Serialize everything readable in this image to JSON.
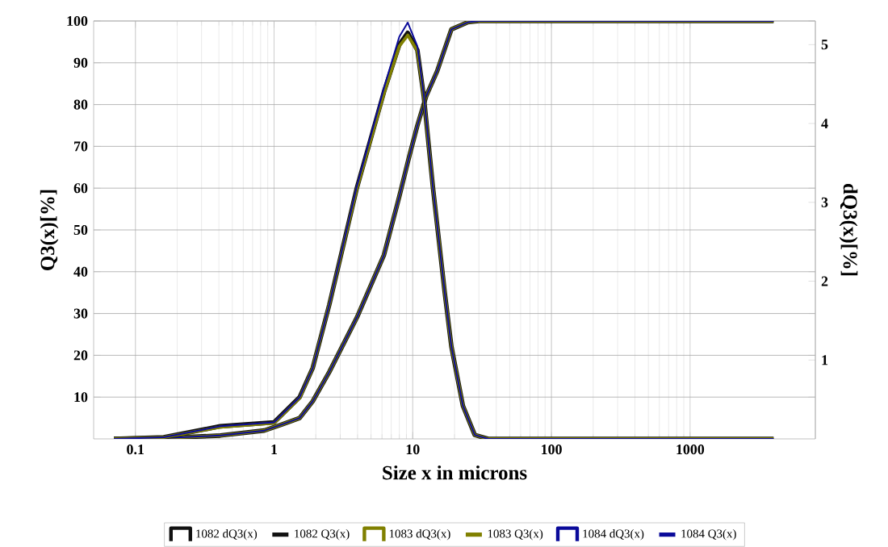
{
  "chart_data": {
    "type": "line",
    "xlabel": "Size x in microns",
    "ylabel": "Q3(x)[%]",
    "y2label": "dQ3(x)[%]",
    "log": "x",
    "grid": true,
    "legend": "bottom",
    "marker": "none",
    "line_style": "solid",
    "xlim": [
      0.05,
      8000
    ],
    "xticks": [
      0.1,
      1,
      10,
      100,
      1000
    ],
    "ylim": [
      0,
      100
    ],
    "yticks": [
      10,
      20,
      30,
      40,
      50,
      60,
      70,
      80,
      90,
      100
    ],
    "y2lim": [
      0,
      5.3
    ],
    "y2ticks": [
      1,
      2,
      3,
      4,
      5
    ],
    "series": [
      {
        "name": "1082 dQ3(x)",
        "axis": "y2",
        "color": "#111111",
        "x": [
          0.07,
          0.16,
          0.41,
          1,
          1.53,
          1.9,
          2.5,
          3.95,
          6.2,
          8,
          9.2,
          10.8,
          12,
          14,
          17,
          19,
          23,
          28,
          35,
          4000
        ],
        "values": [
          0,
          0.02,
          0.16,
          0.21,
          0.53,
          0.9,
          1.7,
          3.18,
          4.4,
          5.0,
          5.15,
          4.93,
          4.35,
          3.18,
          1.86,
          1.17,
          0.42,
          0.05,
          0,
          0
        ]
      },
      {
        "name": "1082 Q3(x)",
        "color": "#111111",
        "x": [
          0.07,
          0.16,
          0.41,
          0.85,
          1.15,
          1.53,
          1.9,
          2.5,
          3.95,
          6.2,
          8,
          9.5,
          10.8,
          12.5,
          15,
          19,
          25,
          30,
          4000
        ],
        "values": [
          0,
          0.2,
          0.8,
          2,
          3.5,
          5,
          9,
          16,
          29,
          44,
          58,
          68,
          75,
          82,
          88,
          98,
          99.7,
          100,
          100
        ]
      },
      {
        "name": "1083 dQ3(x)",
        "axis": "y2",
        "color": "#808000",
        "x": [
          0.07,
          0.16,
          0.41,
          1,
          1.53,
          1.9,
          2.5,
          3.95,
          6.2,
          8,
          9.2,
          10.8,
          12,
          14,
          17,
          19,
          23,
          28,
          35,
          4000
        ],
        "values": [
          0,
          0.02,
          0.15,
          0.2,
          0.52,
          0.9,
          1.7,
          3.17,
          4.38,
          4.98,
          5.12,
          4.92,
          4.35,
          3.18,
          1.86,
          1.17,
          0.42,
          0.05,
          0,
          0
        ]
      },
      {
        "name": "1083 Q3(x)",
        "color": "#808000",
        "x": [
          0.07,
          0.16,
          0.41,
          0.85,
          1.15,
          1.53,
          1.9,
          2.5,
          3.95,
          6.2,
          8,
          9.5,
          10.8,
          12.5,
          15,
          19,
          25,
          30,
          4000
        ],
        "values": [
          0,
          0.2,
          0.8,
          2,
          3.5,
          5,
          9,
          16,
          29,
          44,
          58,
          68,
          75,
          82,
          88,
          98,
          99.7,
          100,
          100
        ]
      },
      {
        "name": "1084 dQ3(x)",
        "axis": "y2",
        "color": "#0a0a9a",
        "x": [
          0.07,
          0.16,
          0.41,
          1,
          1.53,
          1.9,
          2.5,
          3.95,
          6.2,
          8,
          9.2,
          10.8,
          12,
          14,
          17,
          19,
          23,
          28,
          35,
          4000
        ],
        "values": [
          0,
          0.02,
          0.16,
          0.21,
          0.53,
          0.9,
          1.7,
          3.2,
          4.45,
          5.1,
          5.28,
          4.98,
          4.37,
          3.18,
          1.86,
          1.17,
          0.42,
          0.05,
          0,
          0
        ]
      },
      {
        "name": "1084 Q3(x)",
        "color": "#0a0a9a",
        "x": [
          0.07,
          0.16,
          0.41,
          0.85,
          1.15,
          1.53,
          1.9,
          2.5,
          3.95,
          6.2,
          8,
          9.5,
          10.8,
          12.5,
          15,
          19,
          25,
          30,
          4000
        ],
        "values": [
          0,
          0.2,
          0.8,
          2,
          3.5,
          5,
          9,
          16,
          29,
          44,
          58,
          68,
          75,
          82,
          88,
          98,
          99.7,
          100,
          100
        ]
      }
    ]
  }
}
